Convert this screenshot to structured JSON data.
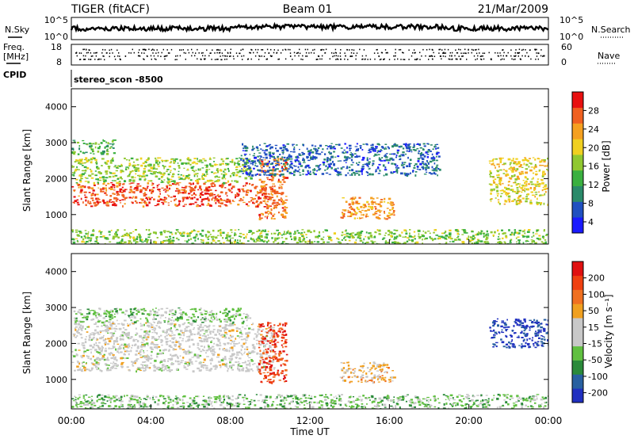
{
  "header": {
    "title": "TIGER (fitACF)",
    "beam": "Beam 01",
    "date": "21/Mar/2009"
  },
  "strips": {
    "nsky_label": "N.Sky",
    "nsearch_label": "N.Search",
    "noise_ticks": [
      "10^5",
      "10^0"
    ],
    "freq_label_1": "Freq.",
    "freq_label_2": "[MHz]",
    "freq_ticks": [
      "18",
      "8"
    ],
    "nave_label": "Nave",
    "nave_ticks": [
      "60",
      "0"
    ],
    "cpid_label": "CPID",
    "cpid_value": "stereo_scon -8500"
  },
  "colors": {
    "power": [
      "#1a1aff",
      "#2050c0",
      "#2a8a6a",
      "#3ab040",
      "#90c830",
      "#f0d020",
      "#f5a020",
      "#f06020",
      "#e81010"
    ],
    "velocity": [
      "#2030c0",
      "#2860a0",
      "#2a8a3a",
      "#60c040",
      "#c8c8c8",
      "#c8c8c8",
      "#f0a020",
      "#f07020",
      "#f04010",
      "#e01010"
    ]
  },
  "chart_data": [
    {
      "type": "heatmap",
      "panel": "power",
      "xlabel": "Time UT",
      "ylabel": "Slant Range [km]",
      "xlim": [
        0,
        24
      ],
      "ylim": [
        180,
        4500
      ],
      "x_ticks": [
        "00:00",
        "04:00",
        "08:00",
        "12:00",
        "16:00",
        "20:00",
        "00:00"
      ],
      "y_ticks": [
        "1000",
        "2000",
        "3000",
        "4000"
      ],
      "colorbar_label": "Power [dB]",
      "colorbar_ticks": [
        "28",
        "24",
        "20",
        "16",
        "12",
        "8",
        "4"
      ],
      "colorbar_range": [
        0,
        30
      ],
      "regions": [
        {
          "name": "main-band",
          "t": [
            0,
            10.2
          ],
          "range": [
            1250,
            1900
          ],
          "value": 26
        },
        {
          "name": "upper-green-band",
          "t": [
            0,
            9
          ],
          "range": [
            1900,
            2600
          ],
          "value": 15
        },
        {
          "name": "top-edge",
          "t": [
            0,
            2.2
          ],
          "range": [
            2700,
            3100
          ],
          "value": 12
        },
        {
          "name": "mid-arc",
          "t": [
            9.4,
            10.8
          ],
          "range": [
            900,
            2600
          ],
          "value": 24
        },
        {
          "name": "blue-upper",
          "t": [
            8.5,
            18.5
          ],
          "range": [
            2100,
            3000
          ],
          "value": 6
        },
        {
          "name": "blobs",
          "t": [
            13.5,
            16.2
          ],
          "range": [
            900,
            1500
          ],
          "value": 22
        },
        {
          "name": "late-patch",
          "t": [
            21,
            24
          ],
          "range": [
            1300,
            2600
          ],
          "value": 18
        },
        {
          "name": "low-clutter",
          "t": [
            0,
            24
          ],
          "range": [
            180,
            600
          ],
          "value": 14
        }
      ]
    },
    {
      "type": "heatmap",
      "panel": "velocity",
      "xlabel": "Time UT",
      "ylabel": "Slant Range [km]",
      "xlim": [
        0,
        24
      ],
      "ylim": [
        180,
        4500
      ],
      "x_ticks": [
        "00:00",
        "04:00",
        "08:00",
        "12:00",
        "16:00",
        "20:00",
        "00:00"
      ],
      "y_ticks": [
        "1000",
        "2000",
        "3000",
        "4000"
      ],
      "colorbar_label": "Velocity [m s⁻¹]",
      "colorbar_ticks": [
        "200",
        "100",
        "50",
        "15",
        "-15",
        "-50",
        "-100",
        "-200"
      ],
      "colorbar_range": [
        -250,
        250
      ],
      "regions": [
        {
          "name": "grey-band",
          "t": [
            0,
            10.2
          ],
          "range": [
            1250,
            2600
          ],
          "value": 0
        },
        {
          "name": "orange-top",
          "t": [
            0,
            9
          ],
          "range": [
            2600,
            3000
          ],
          "value": -60
        },
        {
          "name": "blue-arc",
          "t": [
            9.4,
            10.8
          ],
          "range": [
            900,
            2600
          ],
          "value": 180
        },
        {
          "name": "green-blobs",
          "t": [
            13.5,
            16.2
          ],
          "range": [
            900,
            1500
          ],
          "value": 60
        },
        {
          "name": "red-late",
          "t": [
            21,
            24
          ],
          "range": [
            1900,
            2700
          ],
          "value": -220
        },
        {
          "name": "orange-low",
          "t": [
            0,
            24
          ],
          "range": [
            180,
            600
          ],
          "value": -70
        }
      ]
    }
  ]
}
